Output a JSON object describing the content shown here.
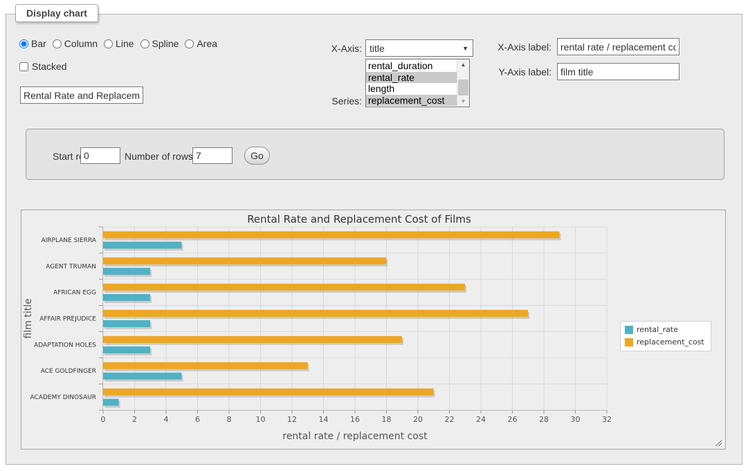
{
  "fieldset": {
    "legend": "Display chart"
  },
  "controls": {
    "chart_types": [
      "Bar",
      "Column",
      "Line",
      "Spline",
      "Area"
    ],
    "chart_type_selected": "Bar",
    "stacked_label": "Stacked",
    "stacked_checked": false,
    "title_input_value": "Rental Rate and Replacement Cost of Films",
    "x_axis_caption": "X-Axis:",
    "x_axis_selected": "title",
    "series_caption": "Series:",
    "series_options": [
      "rental_duration",
      "rental_rate",
      "length",
      "replacement_cost"
    ],
    "series_selected": [
      "rental_rate",
      "replacement_cost"
    ],
    "x_axis_label_caption": "X-Axis label:",
    "x_axis_label_value": "rental rate / replacement cost",
    "y_axis_label_caption": "Y-Axis label:",
    "y_axis_label_value": "film title"
  },
  "row_controls": {
    "start_row_label": "Start row:",
    "start_row_value": "0",
    "num_rows_label": "Number of rows:",
    "num_rows_value": "7",
    "go_label": "Go"
  },
  "chart_data": {
    "type": "bar",
    "title": "Rental Rate and Replacement Cost of Films",
    "xlabel": "rental rate / replacement cost",
    "ylabel": "film title",
    "categories": [
      "AIRPLANE SIERRA",
      "AGENT TRUMAN",
      "AFRICAN EGG",
      "AFFAIR PREJUDICE",
      "ADAPTATION HOLES",
      "ACE GOLDFINGER",
      "ACADEMY DINOSAUR"
    ],
    "series": [
      {
        "name": "rental_rate",
        "color": "#4FB2C4",
        "values": [
          4.99,
          2.99,
          2.99,
          2.99,
          2.99,
          4.99,
          0.99
        ]
      },
      {
        "name": "replacement_cost",
        "color": "#EDA723",
        "values": [
          28.99,
          17.99,
          22.99,
          26.99,
          18.99,
          12.99,
          20.99
        ]
      }
    ],
    "xlim": [
      0,
      32
    ],
    "x_tick_step": 2,
    "grid": true,
    "legend_position": "right",
    "colors": {
      "grid": "#d9d9d9",
      "axis": "#c0c0c0",
      "tick": "#999999",
      "tick_label": "#555555",
      "axis_title": "#555555",
      "category_label": "#333333"
    }
  }
}
